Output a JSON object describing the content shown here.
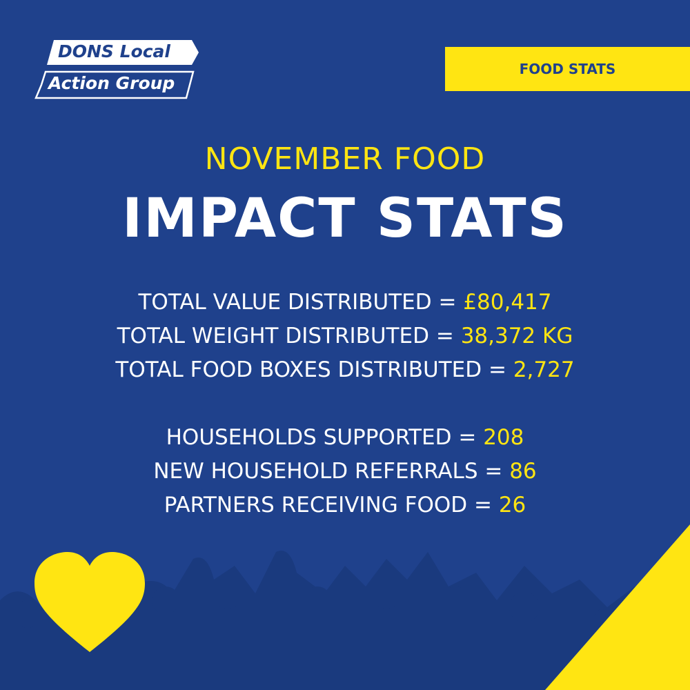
{
  "logo": {
    "line1": "DONS Local",
    "line2": "Action Group"
  },
  "tag": "FOOD STATS",
  "heading": {
    "subtitle": "NOVEMBER FOOD",
    "title": "IMPACT STATS"
  },
  "stats": [
    {
      "label": "TOTAL VALUE DISTRIBUTED =",
      "value": "£80,417"
    },
    {
      "label": "TOTAL WEIGHT DISTRIBUTED =",
      "value": "38,372 KG"
    },
    {
      "label": "TOTAL FOOD BOXES DISTRIBUTED =",
      "value": "2,727"
    },
    {
      "label": "HOUSEHOLDS SUPPORTED =",
      "value": "208"
    },
    {
      "label": "NEW HOUSEHOLD REFERRALS =",
      "value": "86"
    },
    {
      "label": "PARTNERS RECEIVING FOOD =",
      "value": "26"
    }
  ]
}
